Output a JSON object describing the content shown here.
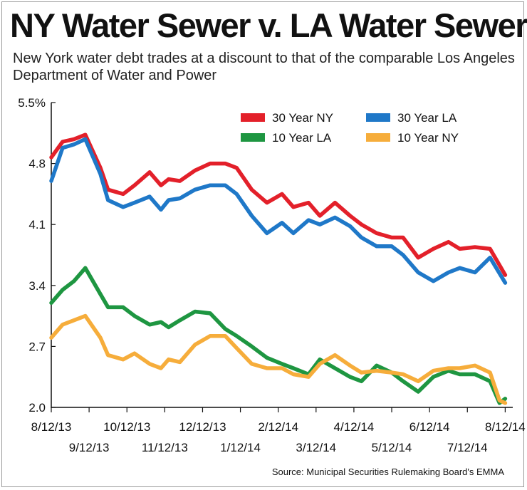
{
  "title": "NY Water Sewer v. LA Water Sewer",
  "subtitle": "New York water debt trades at a discount to that of the comparable Los Angeles Department of Water and Power",
  "source": "Source: Municipal Securities Rulemaking Board's EMMA",
  "chart_data": {
    "type": "line",
    "title": "NY Water Sewer v. LA Water Sewer",
    "xlabel": "",
    "ylabel": "",
    "ylim": [
      2.0,
      5.5
    ],
    "yticks": [
      "5.5%",
      "4.8",
      "4.1",
      "3.4",
      "2.7",
      "2.0"
    ],
    "ytick_values": [
      5.5,
      4.8,
      4.1,
      3.4,
      2.7,
      2.0
    ],
    "xticks_top": [
      "8/12/13",
      "10/12/13",
      "12/12/13",
      "2/12/14",
      "4/12/14",
      "6/12/14",
      "8/12/14"
    ],
    "xticks_bottom": [
      "9/12/13",
      "11/12/13",
      "1/12/14",
      "3/12/14",
      "5/12/14",
      "7/12/14"
    ],
    "x_months": [
      0,
      1,
      2,
      3,
      4,
      5,
      6,
      7,
      8,
      9,
      10,
      11,
      12
    ],
    "legend_position": "top-right",
    "series": [
      {
        "name": "30 Year NY",
        "color": "#e3202a",
        "x": [
          0,
          0.3,
          0.6,
          0.9,
          1.3,
          1.5,
          1.9,
          2.2,
          2.6,
          2.9,
          3.1,
          3.4,
          3.8,
          4.2,
          4.6,
          4.9,
          5.3,
          5.7,
          6.1,
          6.4,
          6.8,
          7.1,
          7.5,
          7.9,
          8.2,
          8.6,
          9.0,
          9.3,
          9.7,
          10.1,
          10.5,
          10.8,
          11.2,
          11.6,
          12.0
        ],
        "values": [
          4.87,
          5.05,
          5.08,
          5.13,
          4.75,
          4.5,
          4.45,
          4.55,
          4.7,
          4.55,
          4.62,
          4.6,
          4.72,
          4.8,
          4.8,
          4.75,
          4.5,
          4.35,
          4.45,
          4.3,
          4.35,
          4.2,
          4.35,
          4.2,
          4.1,
          4.0,
          3.95,
          3.95,
          3.72,
          3.82,
          3.9,
          3.82,
          3.84,
          3.82,
          3.52
        ]
      },
      {
        "name": "30 Year LA",
        "color": "#1f78c8",
        "x": [
          0,
          0.3,
          0.6,
          0.9,
          1.3,
          1.5,
          1.9,
          2.2,
          2.6,
          2.9,
          3.1,
          3.4,
          3.8,
          4.2,
          4.6,
          4.9,
          5.3,
          5.7,
          6.1,
          6.4,
          6.8,
          7.1,
          7.5,
          7.9,
          8.2,
          8.6,
          9.0,
          9.3,
          9.7,
          10.1,
          10.5,
          10.8,
          11.2,
          11.6,
          12.0
        ],
        "values": [
          4.6,
          4.98,
          5.02,
          5.08,
          4.68,
          4.38,
          4.3,
          4.35,
          4.42,
          4.27,
          4.38,
          4.4,
          4.5,
          4.55,
          4.55,
          4.45,
          4.2,
          4.0,
          4.12,
          4.0,
          4.15,
          4.1,
          4.18,
          4.08,
          3.95,
          3.85,
          3.85,
          3.75,
          3.55,
          3.45,
          3.55,
          3.6,
          3.55,
          3.72,
          3.43
        ]
      },
      {
        "name": "10 Year LA",
        "color": "#1e9641",
        "x": [
          0,
          0.3,
          0.6,
          0.9,
          1.3,
          1.5,
          1.9,
          2.2,
          2.6,
          2.9,
          3.1,
          3.4,
          3.8,
          4.2,
          4.6,
          4.9,
          5.3,
          5.7,
          6.1,
          6.4,
          6.8,
          7.1,
          7.5,
          7.9,
          8.2,
          8.6,
          9.0,
          9.3,
          9.7,
          10.1,
          10.5,
          10.8,
          11.2,
          11.6,
          11.85,
          12.0
        ],
        "values": [
          3.2,
          3.35,
          3.45,
          3.6,
          3.3,
          3.15,
          3.15,
          3.05,
          2.95,
          2.98,
          2.92,
          3.0,
          3.1,
          3.08,
          2.9,
          2.82,
          2.7,
          2.57,
          2.5,
          2.45,
          2.38,
          2.55,
          2.45,
          2.35,
          2.3,
          2.48,
          2.4,
          2.3,
          2.18,
          2.35,
          2.42,
          2.38,
          2.38,
          2.3,
          2.05,
          2.1
        ]
      },
      {
        "name": "10 Year NY",
        "color": "#f6ad3b",
        "x": [
          0,
          0.3,
          0.6,
          0.9,
          1.3,
          1.5,
          1.9,
          2.2,
          2.6,
          2.9,
          3.1,
          3.4,
          3.8,
          4.2,
          4.6,
          4.9,
          5.3,
          5.7,
          6.1,
          6.4,
          6.8,
          7.1,
          7.5,
          7.9,
          8.2,
          8.6,
          9.0,
          9.3,
          9.7,
          10.1,
          10.5,
          10.8,
          11.2,
          11.6,
          11.85,
          12.0
        ],
        "values": [
          2.8,
          2.95,
          3.0,
          3.05,
          2.8,
          2.6,
          2.55,
          2.62,
          2.5,
          2.45,
          2.55,
          2.52,
          2.72,
          2.82,
          2.82,
          2.68,
          2.5,
          2.45,
          2.45,
          2.38,
          2.35,
          2.5,
          2.6,
          2.48,
          2.4,
          2.42,
          2.4,
          2.38,
          2.3,
          2.42,
          2.45,
          2.45,
          2.48,
          2.4,
          2.08,
          2.05
        ]
      }
    ]
  }
}
